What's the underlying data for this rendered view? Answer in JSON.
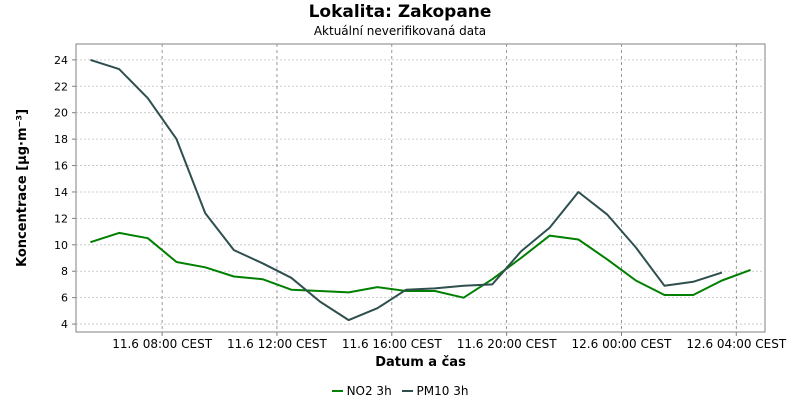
{
  "chart_data": {
    "type": "line",
    "title": "Lokalita: Zakopane",
    "subtitle": "Aktuální neverifikovaná data",
    "xlabel": "Datum a čas",
    "ylabel": "Koncentrace [µg·m⁻³]",
    "ylim": [
      3.4,
      25.2
    ],
    "yticks": [
      4,
      6,
      8,
      10,
      12,
      14,
      16,
      18,
      20,
      22,
      24
    ],
    "xlim": [
      "11.6 05:00",
      "12.6 05:00"
    ],
    "xticks": [
      {
        "x": "11.6 08:00",
        "label": "11.6 08:00 CEST"
      },
      {
        "x": "11.6 12:00",
        "label": "11.6 12:00 CEST"
      },
      {
        "x": "11.6 16:00",
        "label": "11.6 16:00 CEST"
      },
      {
        "x": "11.6 20:00",
        "label": "11.6 20:00 CEST"
      },
      {
        "x": "12.6 00:00",
        "label": "12.6 00:00 CEST"
      },
      {
        "x": "12.6 04:00",
        "label": "12.6 04:00 CEST"
      }
    ],
    "grid": true,
    "legend_position": "bottom",
    "series": [
      {
        "name": "NO2 3h",
        "color": "#008000",
        "points": [
          [
            "11.6 05:30",
            10.2
          ],
          [
            "11.6 06:30",
            10.9
          ],
          [
            "11.6 07:30",
            10.5
          ],
          [
            "11.6 08:30",
            8.7
          ],
          [
            "11.6 09:30",
            8.3
          ],
          [
            "11.6 10:30",
            7.6
          ],
          [
            "11.6 11:30",
            7.4
          ],
          [
            "11.6 12:30",
            6.6
          ],
          [
            "11.6 13:30",
            6.5
          ],
          [
            "11.6 14:30",
            6.4
          ],
          [
            "11.6 15:30",
            6.8
          ],
          [
            "11.6 16:30",
            6.5
          ],
          [
            "11.6 17:30",
            6.5
          ],
          [
            "11.6 18:30",
            6.0
          ],
          [
            "11.6 19:30",
            7.4
          ],
          [
            "11.6 20:30",
            9.0
          ],
          [
            "11.6 21:30",
            10.7
          ],
          [
            "11.6 22:30",
            10.4
          ],
          [
            "11.6 23:30",
            8.9
          ],
          [
            "12.6 00:30",
            7.3
          ],
          [
            "12.6 01:30",
            6.2
          ],
          [
            "12.6 02:30",
            6.2
          ],
          [
            "12.6 03:30",
            7.3
          ],
          [
            "12.6 04:30",
            8.1
          ]
        ]
      },
      {
        "name": "PM10 3h",
        "color": "#2f4f4f",
        "points": [
          [
            "11.6 05:30",
            24.0
          ],
          [
            "11.6 06:30",
            23.3
          ],
          [
            "11.6 07:30",
            21.1
          ],
          [
            "11.6 08:30",
            18.0
          ],
          [
            "11.6 09:30",
            12.4
          ],
          [
            "11.6 10:30",
            9.6
          ],
          [
            "11.6 11:30",
            8.6
          ],
          [
            "11.6 12:30",
            7.5
          ],
          [
            "11.6 13:30",
            5.7
          ],
          [
            "11.6 14:30",
            4.3
          ],
          [
            "11.6 15:30",
            5.2
          ],
          [
            "11.6 16:30",
            6.6
          ],
          [
            "11.6 17:30",
            6.7
          ],
          [
            "11.6 18:30",
            6.9
          ],
          [
            "11.6 19:30",
            7.0
          ],
          [
            "11.6 20:30",
            9.5
          ],
          [
            "11.6 21:30",
            11.3
          ],
          [
            "11.6 22:30",
            14.0
          ],
          [
            "11.6 23:30",
            12.3
          ],
          [
            "12.6 00:30",
            9.8
          ],
          [
            "12.6 01:30",
            6.9
          ],
          [
            "12.6 02:30",
            7.2
          ],
          [
            "12.6 03:30",
            7.9
          ]
        ]
      }
    ]
  }
}
